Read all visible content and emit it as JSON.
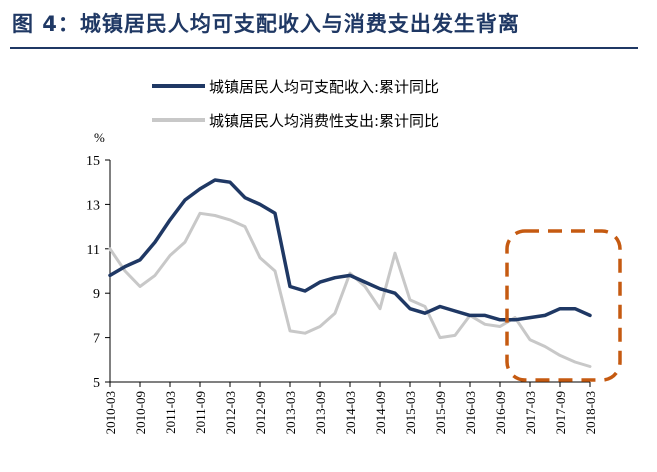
{
  "figure_title": "图 4：城镇居民人均可支配收入与消费支出发生背离",
  "chart_data": {
    "type": "line",
    "unit_label": "%",
    "x": [
      "2010-03",
      "2010-06",
      "2010-09",
      "2010-12",
      "2011-03",
      "2011-06",
      "2011-09",
      "2011-12",
      "2012-03",
      "2012-06",
      "2012-09",
      "2012-12",
      "2013-03",
      "2013-06",
      "2013-09",
      "2013-12",
      "2014-03",
      "2014-06",
      "2014-09",
      "2014-12",
      "2015-03",
      "2015-06",
      "2015-09",
      "2015-12",
      "2016-03",
      "2016-06",
      "2016-09",
      "2016-12",
      "2017-03",
      "2017-06",
      "2017-09",
      "2017-12",
      "2018-03"
    ],
    "tick_labels": [
      "2010-03",
      "2010-09",
      "2011-03",
      "2011-09",
      "2012-03",
      "2012-09",
      "2013-03",
      "2013-09",
      "2014-03",
      "2014-09",
      "2015-03",
      "2015-09",
      "2016-03",
      "2016-09",
      "2017-03",
      "2017-09",
      "2018-03"
    ],
    "ylim": [
      5,
      15
    ],
    "yticks": [
      5,
      7,
      9,
      11,
      13,
      15
    ],
    "series": [
      {
        "name": "城镇居民人均可支配收入:累计同比",
        "color": "#1f3864",
        "values": [
          9.8,
          10.2,
          10.5,
          11.3,
          12.3,
          13.2,
          13.7,
          14.1,
          14.0,
          13.3,
          13.0,
          12.6,
          9.3,
          9.1,
          9.5,
          9.7,
          9.8,
          9.5,
          9.2,
          9.0,
          8.3,
          8.1,
          8.4,
          8.2,
          8.0,
          8.0,
          7.8,
          7.8,
          7.9,
          8.0,
          8.3,
          8.3,
          8.0
        ]
      },
      {
        "name": "城镇居民人均消费性支出:累计同比",
        "color": "#c8c8c8",
        "values": [
          11.0,
          10.0,
          9.3,
          9.8,
          10.7,
          11.3,
          12.6,
          12.5,
          12.3,
          12.0,
          10.6,
          10.0,
          7.3,
          7.2,
          7.5,
          8.1,
          9.9,
          9.3,
          8.3,
          10.8,
          8.7,
          8.4,
          7.0,
          7.1,
          8.0,
          7.6,
          7.5,
          7.9,
          6.9,
          6.6,
          6.2,
          5.9,
          5.7
        ]
      }
    ],
    "highlight_box": {
      "from": "2016-12",
      "to": "2018-03",
      "color": "#c55a11",
      "style": "dashed"
    }
  }
}
